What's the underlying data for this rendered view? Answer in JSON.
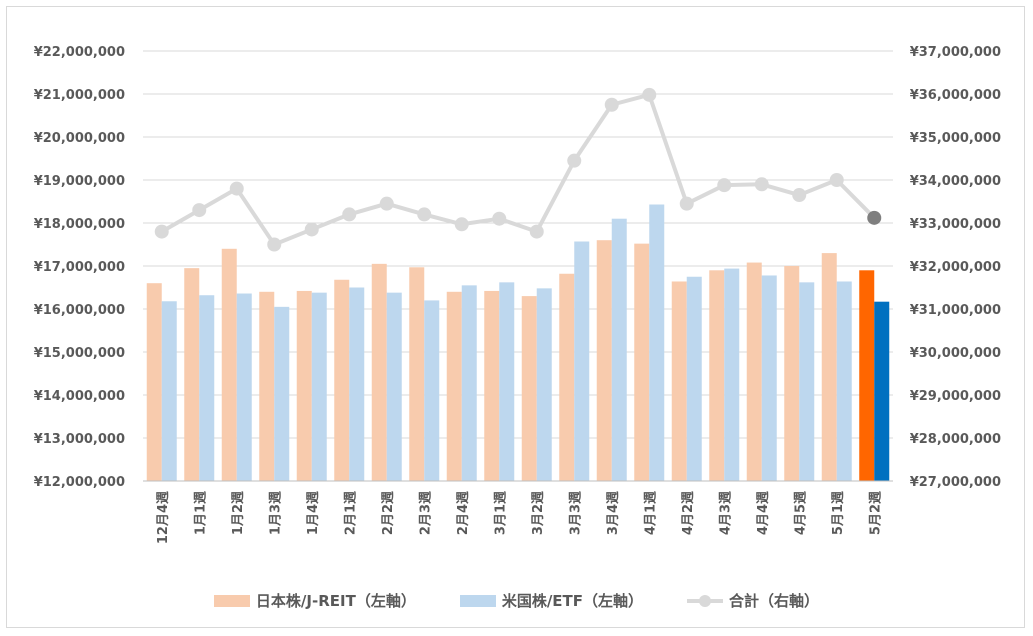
{
  "chart_data": {
    "type": "bar",
    "categories": [
      "12月4週",
      "1月1週",
      "1月2週",
      "1月3週",
      "1月4週",
      "2月1週",
      "2月2週",
      "2月3週",
      "2月4週",
      "3月1週",
      "3月2週",
      "3月3週",
      "3月4週",
      "4月1週",
      "4月2週",
      "4月3週",
      "4月4週",
      "4月5週",
      "5月1週",
      "5月2週"
    ],
    "y_left": {
      "range": [
        12000000,
        22000000
      ],
      "ticks": [
        "¥12,000,000",
        "¥13,000,000",
        "¥14,000,000",
        "¥15,000,000",
        "¥16,000,000",
        "¥17,000,000",
        "¥18,000,000",
        "¥19,000,000",
        "¥20,000,000",
        "¥21,000,000",
        "¥22,000,000"
      ]
    },
    "y_right": {
      "range": [
        27000000,
        37000000
      ],
      "ticks": [
        "¥27,000,000",
        "¥28,000,000",
        "¥29,000,000",
        "¥30,000,000",
        "¥31,000,000",
        "¥32,000,000",
        "¥33,000,000",
        "¥34,000,000",
        "¥35,000,000",
        "¥36,000,000",
        "¥37,000,000"
      ]
    },
    "series": [
      {
        "name": "日本株/J-REIT（左軸）",
        "kind": "bar",
        "axis": "left",
        "color": "#f8cbad",
        "highlight_color": "#ff6600",
        "values": [
          16600000,
          16950000,
          17400000,
          16400000,
          16420000,
          16680000,
          17050000,
          16970000,
          16400000,
          16420000,
          16300000,
          16820000,
          17600000,
          17520000,
          16640000,
          16900000,
          17080000,
          17000000,
          17300000,
          16900000
        ]
      },
      {
        "name": "米国株/ETF（左軸）",
        "kind": "bar",
        "axis": "left",
        "color": "#bdd7ee",
        "highlight_color": "#0070c0",
        "values": [
          16180000,
          16320000,
          16360000,
          16050000,
          16380000,
          16500000,
          16380000,
          16200000,
          16550000,
          16620000,
          16480000,
          17570000,
          18100000,
          18430000,
          16750000,
          16940000,
          16780000,
          16620000,
          16640000,
          16170000
        ]
      },
      {
        "name": "合計（右軸）",
        "kind": "line",
        "axis": "right",
        "color": "#d9d9d9",
        "highlight_color": "#7f7f7f",
        "values": [
          32800000,
          33300000,
          33800000,
          32500000,
          32850000,
          33200000,
          33450000,
          33200000,
          32970000,
          33100000,
          32800000,
          34450000,
          35750000,
          35980000,
          33450000,
          33880000,
          33900000,
          33650000,
          34000000,
          33120000
        ]
      }
    ],
    "highlight_index": 19,
    "grid": true,
    "legend_position": "bottom"
  }
}
